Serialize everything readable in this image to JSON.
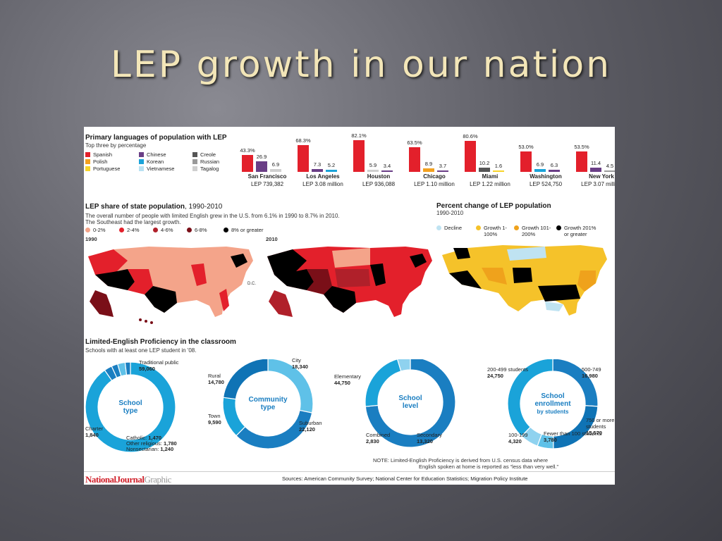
{
  "slide_title": "LEP growth in our nation",
  "section1": {
    "title": "Primary languages of population with LEP",
    "subtitle": "Top three by percentage",
    "legend": [
      {
        "label": "Spanish",
        "color": "#e3202b"
      },
      {
        "label": "Chinese",
        "color": "#6a3e86"
      },
      {
        "label": "Creole",
        "color": "#555555"
      },
      {
        "label": "Polish",
        "color": "#f3a11f"
      },
      {
        "label": "Korean",
        "color": "#1aa3d9"
      },
      {
        "label": "Russian",
        "color": "#9a9a9a"
      },
      {
        "label": "Portuguese",
        "color": "#f7d42a"
      },
      {
        "label": "Vietnamese",
        "color": "#b8e1f2"
      },
      {
        "label": "Tagalog",
        "color": "#cfcfcf"
      }
    ]
  },
  "section2": {
    "title": "LEP share of state population",
    "title_years": ", 1990-2010",
    "subtitle1": "The overall number of people with limited English grew in the U.S. from 6.1% in 1990 to 8.7% in 2010.",
    "subtitle2": "The Southeast had the largest growth.",
    "year1": "1990",
    "year2": "2010",
    "dc": "D.C.",
    "legend": [
      {
        "label": "0-2%",
        "color": "#f4a48a"
      },
      {
        "label": "2-4%",
        "color": "#e3202b"
      },
      {
        "label": "4-6%",
        "color": "#b0202a"
      },
      {
        "label": "6-8%",
        "color": "#7a0f18"
      },
      {
        "label": "8% or greater",
        "color": "#000000"
      }
    ]
  },
  "section3": {
    "title": "Percent change of LEP population",
    "subtitle": "1990-2010",
    "legend": [
      {
        "label": "Decline",
        "color": "#bfe3f2"
      },
      {
        "label": "Growth 1-100%",
        "color": "#f5c22a"
      },
      {
        "label": "Growth 101-200%",
        "color": "#efa21c"
      },
      {
        "label": "Growth 201% or greater",
        "color": "#000000"
      }
    ]
  },
  "section4": {
    "title": "Limited-English Proficiency in the classroom",
    "subtitle": "Schools with at least one LEP student in '08.",
    "donuts": [
      {
        "center": [
          "School",
          "type"
        ],
        "labels": [
          {
            "t": "Traditional public",
            "v": "59,060"
          },
          {
            "t": "Charter",
            "v": "1,840"
          },
          {
            "t": "Catholic:",
            "v": "1,470"
          },
          {
            "t": "Other religious:",
            "v": "1,780"
          },
          {
            "t": "Nonsectarian:",
            "v": "1,240"
          }
        ]
      },
      {
        "center": [
          "Community",
          "type"
        ],
        "labels": [
          {
            "t": "City",
            "v": "18,340"
          },
          {
            "t": "Rural",
            "v": "14,780"
          },
          {
            "t": "Town",
            "v": "9,590"
          },
          {
            "t": "Suburban",
            "v": "22,120"
          }
        ]
      },
      {
        "center": [
          "School",
          "level"
        ],
        "labels": [
          {
            "t": "Elementary",
            "v": "44,750"
          },
          {
            "t": "Combined",
            "v": "2,830"
          },
          {
            "t": "Secondary",
            "v": "13,320"
          }
        ]
      },
      {
        "center": [
          "School",
          "enrollment",
          "by students"
        ],
        "labels": [
          {
            "t": "200-499 students",
            "v": "24,750"
          },
          {
            "t": "500-749",
            "v": "16,980"
          },
          {
            "t": "750 or more students",
            "v": "15,570"
          },
          {
            "t": "Fewer than 100 students",
            "v": "3,780"
          },
          {
            "t": "100-199",
            "v": "4,320"
          }
        ]
      }
    ],
    "note": "NOTE: Limited-English Proficiency is derived from U.S. census data where",
    "note2": "English spoken at home is reported as “less than very well.”"
  },
  "footer": {
    "logo": "NationalJournal",
    "logo_graphic": "Graphic",
    "sources": "Sources: American Community Survey; National Center for Education Statistics; Migration Policy Institute"
  },
  "chart_data": [
    {
      "type": "bar",
      "title": "Primary languages of population with LEP",
      "subtitle": "Top three by percentage",
      "ylim": [
        0,
        100
      ],
      "cities": [
        {
          "name": "San Francisco",
          "pop": "LEP 739,382",
          "bars": [
            {
              "lang": "Spanish",
              "value": 43.3,
              "label": "43.3%"
            },
            {
              "lang": "Chinese",
              "value": 26.9,
              "label": "26.9"
            },
            {
              "lang": "Tagalog",
              "value": 6.9,
              "label": "6.9"
            }
          ]
        },
        {
          "name": "Los Angeles",
          "pop": "LEP 3.08 million",
          "bars": [
            {
              "lang": "Spanish",
              "value": 68.3,
              "label": "68.3%"
            },
            {
              "lang": "Chinese",
              "value": 7.3,
              "label": "7.3"
            },
            {
              "lang": "Korean",
              "value": 5.2,
              "label": "5.2"
            }
          ]
        },
        {
          "name": "Houston",
          "pop": "LEP 936,088",
          "bars": [
            {
              "lang": "Spanish",
              "value": 82.1,
              "label": "82.1%"
            },
            {
              "lang": "Tagalog",
              "value": 5.9,
              "label": "5.9"
            },
            {
              "lang": "Chinese",
              "value": 3.4,
              "label": "3.4"
            }
          ]
        },
        {
          "name": "Chicago",
          "pop": "LEP 1.10 million",
          "bars": [
            {
              "lang": "Spanish",
              "value": 63.5,
              "label": "63.5%"
            },
            {
              "lang": "Polish",
              "value": 8.9,
              "label": "8.9"
            },
            {
              "lang": "Chinese",
              "value": 3.7,
              "label": "3.7"
            }
          ]
        },
        {
          "name": "Miami",
          "pop": "LEP 1.22 million",
          "bars": [
            {
              "lang": "Spanish",
              "value": 80.6,
              "label": "80.6%"
            },
            {
              "lang": "Creole",
              "value": 10.2,
              "label": "10.2"
            },
            {
              "lang": "Portuguese",
              "value": 1.6,
              "label": "1.6"
            }
          ]
        },
        {
          "name": "Washington",
          "pop": "LEP 524,750",
          "bars": [
            {
              "lang": "Spanish",
              "value": 53.0,
              "label": "53.0%"
            },
            {
              "lang": "Korean",
              "value": 6.9,
              "label": "6.9"
            },
            {
              "lang": "Chinese",
              "value": 6.3,
              "label": "6.3"
            }
          ]
        },
        {
          "name": "New York",
          "pop": "LEP 3.07 million",
          "bars": [
            {
              "lang": "Spanish",
              "value": 53.5,
              "label": "53.5%"
            },
            {
              "lang": "Chinese",
              "value": 11.4,
              "label": "11.4"
            },
            {
              "lang": "Russian",
              "value": 4.5,
              "label": "4.5"
            }
          ]
        }
      ]
    },
    {
      "type": "pie",
      "title": "School type",
      "slices": [
        {
          "label": "Traditional public",
          "value": 59060
        },
        {
          "label": "Charter",
          "value": 1840
        },
        {
          "label": "Catholic",
          "value": 1470
        },
        {
          "label": "Other religious",
          "value": 1780
        },
        {
          "label": "Nonsectarian",
          "value": 1240
        }
      ]
    },
    {
      "type": "pie",
      "title": "Community type",
      "slices": [
        {
          "label": "City",
          "value": 18340
        },
        {
          "label": "Suburban",
          "value": 22120
        },
        {
          "label": "Town",
          "value": 9590
        },
        {
          "label": "Rural",
          "value": 14780
        }
      ]
    },
    {
      "type": "pie",
      "title": "School level",
      "slices": [
        {
          "label": "Elementary",
          "value": 44750
        },
        {
          "label": "Secondary",
          "value": 13320
        },
        {
          "label": "Combined",
          "value": 2830
        }
      ]
    },
    {
      "type": "pie",
      "title": "School enrollment by students",
      "slices": [
        {
          "label": "500-749",
          "value": 16980
        },
        {
          "label": "750 or more students",
          "value": 15570
        },
        {
          "label": "Fewer than 100 students",
          "value": 3780
        },
        {
          "label": "100-199",
          "value": 4320
        },
        {
          "label": "200-499 students",
          "value": 24750
        }
      ]
    }
  ]
}
